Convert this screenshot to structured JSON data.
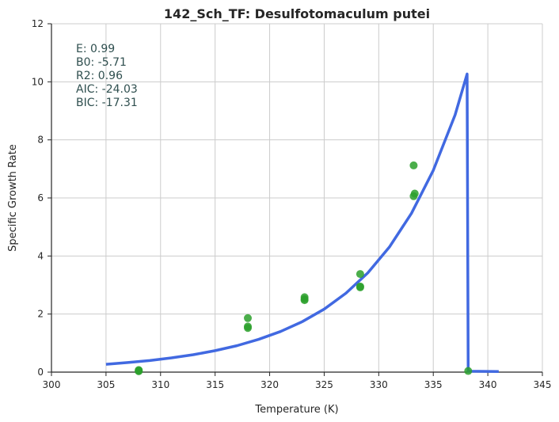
{
  "chart_data": {
    "type": "scatter",
    "title": "142_Sch_TF: Desulfotomaculum putei",
    "xlabel": "Temperature (K)",
    "ylabel": "Specific Growth Rate",
    "xlim": [
      300,
      345
    ],
    "ylim": [
      0,
      12
    ],
    "xticks": [
      300,
      305,
      310,
      315,
      320,
      325,
      330,
      335,
      340,
      345
    ],
    "yticks": [
      0,
      2,
      4,
      6,
      8,
      10,
      12
    ],
    "grid": true,
    "annotations": [
      "E:  0.99",
      "B0:  -5.71",
      "R2:  0.96",
      "AIC: -24.03",
      "BIC: -17.31"
    ],
    "series": [
      {
        "kind": "scatter",
        "color": "#2ca02c",
        "points": [
          [
            308.0,
            0.03
          ],
          [
            308.0,
            0.05
          ],
          [
            308.0,
            0.07
          ],
          [
            318.0,
            1.52
          ],
          [
            318.0,
            1.57
          ],
          [
            318.0,
            1.86
          ],
          [
            323.2,
            2.48
          ],
          [
            323.2,
            2.52
          ],
          [
            323.2,
            2.58
          ],
          [
            328.3,
            2.92
          ],
          [
            328.3,
            2.95
          ],
          [
            328.3,
            3.38
          ],
          [
            333.2,
            6.06
          ],
          [
            333.3,
            6.15
          ],
          [
            333.2,
            7.12
          ],
          [
            338.2,
            0.04
          ]
        ]
      },
      {
        "kind": "line",
        "color": "#4169e1",
        "points": [
          [
            305,
            0.27
          ],
          [
            307,
            0.33
          ],
          [
            309,
            0.4
          ],
          [
            311,
            0.49
          ],
          [
            313,
            0.6
          ],
          [
            315,
            0.74
          ],
          [
            317,
            0.91
          ],
          [
            319,
            1.13
          ],
          [
            321,
            1.4
          ],
          [
            323,
            1.74
          ],
          [
            325,
            2.17
          ],
          [
            327,
            2.72
          ],
          [
            329,
            3.42
          ],
          [
            331,
            4.32
          ],
          [
            333,
            5.47
          ],
          [
            335,
            6.95
          ],
          [
            337,
            8.86
          ],
          [
            338.1,
            10.27
          ],
          [
            338.2,
            0.03
          ],
          [
            341,
            0.02
          ]
        ]
      }
    ]
  }
}
